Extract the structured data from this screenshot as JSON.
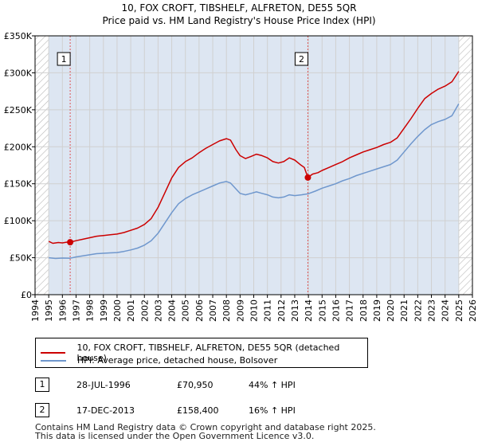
{
  "title": {
    "line1": "10, FOX CROFT, TIBSHELF, ALFRETON, DE55 5QR",
    "line2": "Price paid vs. HM Land Registry's House Price Index (HPI)"
  },
  "colors": {
    "property": "#cc0000",
    "hpi": "#6f97cd",
    "shade": "#dde6f2",
    "hatch": "#b8b8b8",
    "grid": "#d0d0d0",
    "marker_line": "#dd5555"
  },
  "chart_data": {
    "type": "line",
    "title": "Price paid vs. HM Land Registry's House Price Index (HPI)",
    "xlim": [
      1994,
      2026
    ],
    "ylim": [
      0,
      350000
    ],
    "x_ticks": [
      1994,
      1995,
      1996,
      1997,
      1998,
      1999,
      2000,
      2001,
      2002,
      2003,
      2004,
      2005,
      2006,
      2007,
      2008,
      2009,
      2010,
      2011,
      2012,
      2013,
      2014,
      2015,
      2016,
      2017,
      2018,
      2019,
      2020,
      2021,
      2022,
      2023,
      2024,
      2025,
      2026
    ],
    "x_tick_labels": [
      "1994",
      "1995",
      "1996",
      "1997",
      "1998",
      "1999",
      "2000",
      "2001",
      "2002",
      "2003",
      "2004",
      "2005",
      "2006",
      "2007",
      "2008",
      "2009",
      "2010",
      "2011",
      "2012",
      "2013",
      "2014",
      "2015",
      "2016",
      "2017",
      "2018",
      "2019",
      "2020",
      "2021",
      "2022",
      "2023",
      "2024",
      "2025",
      "2026"
    ],
    "y_ticks": [
      0,
      50000,
      100000,
      150000,
      200000,
      250000,
      300000,
      350000
    ],
    "y_tick_labels": [
      "£0",
      "£50K",
      "£100K",
      "£150K",
      "£200K",
      "£250K",
      "£300K",
      "£350K"
    ],
    "shaded_range": [
      1995,
      2025
    ],
    "hatched_ranges": [
      [
        1994,
        1995
      ],
      [
        2025,
        2026
      ]
    ],
    "grid": true,
    "series": [
      {
        "name": "10, FOX CROFT, TIBSHELF, ALFRETON, DE55 5QR (detached house)",
        "color": "#cc0000",
        "points": [
          [
            1995.0,
            72000
          ],
          [
            1995.3,
            69500
          ],
          [
            1995.7,
            70500
          ],
          [
            1996.0,
            70000
          ],
          [
            1996.3,
            71000
          ],
          [
            1996.57,
            70950
          ],
          [
            1997.0,
            73000
          ],
          [
            1997.5,
            75000
          ],
          [
            1998.0,
            77000
          ],
          [
            1998.5,
            79000
          ],
          [
            1999.0,
            80000
          ],
          [
            1999.5,
            81000
          ],
          [
            2000.0,
            82000
          ],
          [
            2000.5,
            84000
          ],
          [
            2001.0,
            87000
          ],
          [
            2001.5,
            90000
          ],
          [
            2002.0,
            95000
          ],
          [
            2002.5,
            103000
          ],
          [
            2003.0,
            118000
          ],
          [
            2003.5,
            138000
          ],
          [
            2004.0,
            158000
          ],
          [
            2004.5,
            172000
          ],
          [
            2005.0,
            180000
          ],
          [
            2005.5,
            185000
          ],
          [
            2006.0,
            192000
          ],
          [
            2006.5,
            198000
          ],
          [
            2007.0,
            203000
          ],
          [
            2007.5,
            208000
          ],
          [
            2008.0,
            211000
          ],
          [
            2008.3,
            209000
          ],
          [
            2008.7,
            196000
          ],
          [
            2009.0,
            188000
          ],
          [
            2009.4,
            184000
          ],
          [
            2009.8,
            187000
          ],
          [
            2010.2,
            190000
          ],
          [
            2010.6,
            188000
          ],
          [
            2011.0,
            185000
          ],
          [
            2011.4,
            180000
          ],
          [
            2011.8,
            178000
          ],
          [
            2012.2,
            180000
          ],
          [
            2012.6,
            185000
          ],
          [
            2013.0,
            182000
          ],
          [
            2013.4,
            176000
          ],
          [
            2013.7,
            172000
          ],
          [
            2013.96,
            158400
          ],
          [
            2014.3,
            163000
          ],
          [
            2014.7,
            165000
          ],
          [
            2015.0,
            168000
          ],
          [
            2015.5,
            172000
          ],
          [
            2016.0,
            176000
          ],
          [
            2016.5,
            180000
          ],
          [
            2017.0,
            185000
          ],
          [
            2017.5,
            189000
          ],
          [
            2018.0,
            193000
          ],
          [
            2018.5,
            196000
          ],
          [
            2019.0,
            199000
          ],
          [
            2019.5,
            203000
          ],
          [
            2020.0,
            206000
          ],
          [
            2020.5,
            212000
          ],
          [
            2021.0,
            225000
          ],
          [
            2021.5,
            238000
          ],
          [
            2022.0,
            252000
          ],
          [
            2022.5,
            265000
          ],
          [
            2023.0,
            272000
          ],
          [
            2023.5,
            278000
          ],
          [
            2024.0,
            282000
          ],
          [
            2024.5,
            288000
          ],
          [
            2025.0,
            302000
          ]
        ]
      },
      {
        "name": "HPI: Average price, detached house, Bolsover",
        "color": "#6f97cd",
        "points": [
          [
            1995.0,
            50000
          ],
          [
            1995.5,
            49000
          ],
          [
            1996.0,
            49500
          ],
          [
            1996.57,
            49300
          ],
          [
            1997.0,
            51000
          ],
          [
            1997.5,
            52500
          ],
          [
            1998.0,
            54000
          ],
          [
            1998.5,
            55500
          ],
          [
            1999.0,
            56000
          ],
          [
            1999.5,
            56500
          ],
          [
            2000.0,
            57000
          ],
          [
            2000.5,
            58500
          ],
          [
            2001.0,
            60500
          ],
          [
            2001.5,
            63000
          ],
          [
            2002.0,
            67000
          ],
          [
            2002.5,
            73000
          ],
          [
            2003.0,
            83000
          ],
          [
            2003.5,
            97000
          ],
          [
            2004.0,
            111000
          ],
          [
            2004.5,
            123000
          ],
          [
            2005.0,
            130000
          ],
          [
            2005.5,
            135000
          ],
          [
            2006.0,
            139000
          ],
          [
            2006.5,
            143000
          ],
          [
            2007.0,
            147000
          ],
          [
            2007.5,
            151000
          ],
          [
            2008.0,
            153000
          ],
          [
            2008.3,
            151000
          ],
          [
            2008.7,
            143000
          ],
          [
            2009.0,
            137000
          ],
          [
            2009.4,
            135000
          ],
          [
            2009.8,
            137000
          ],
          [
            2010.2,
            139000
          ],
          [
            2010.6,
            137000
          ],
          [
            2011.0,
            135000
          ],
          [
            2011.4,
            132000
          ],
          [
            2011.8,
            131000
          ],
          [
            2012.2,
            132000
          ],
          [
            2012.6,
            135000
          ],
          [
            2013.0,
            134000
          ],
          [
            2013.5,
            135000
          ],
          [
            2013.96,
            136300
          ],
          [
            2014.5,
            140000
          ],
          [
            2015.0,
            144000
          ],
          [
            2015.5,
            147000
          ],
          [
            2016.0,
            150000
          ],
          [
            2016.5,
            154000
          ],
          [
            2017.0,
            157000
          ],
          [
            2017.5,
            161000
          ],
          [
            2018.0,
            164000
          ],
          [
            2018.5,
            167000
          ],
          [
            2019.0,
            170000
          ],
          [
            2019.5,
            173000
          ],
          [
            2020.0,
            176000
          ],
          [
            2020.5,
            182000
          ],
          [
            2021.0,
            193000
          ],
          [
            2021.5,
            204000
          ],
          [
            2022.0,
            214000
          ],
          [
            2022.5,
            223000
          ],
          [
            2023.0,
            230000
          ],
          [
            2023.5,
            234000
          ],
          [
            2024.0,
            237000
          ],
          [
            2024.5,
            242000
          ],
          [
            2025.0,
            258000
          ]
        ]
      }
    ],
    "markers": [
      {
        "label": "1",
        "x": 1996.57,
        "y": 70950
      },
      {
        "label": "2",
        "x": 2013.96,
        "y": 158400
      }
    ]
  },
  "legend": {
    "property_label": "10, FOX CROFT, TIBSHELF, ALFRETON, DE55 5QR (detached house)",
    "hpi_label": "HPI: Average price, detached house, Bolsover"
  },
  "transactions": [
    {
      "num": "1",
      "date": "28-JUL-1996",
      "price": "£70,950",
      "hpi": "44% ↑ HPI"
    },
    {
      "num": "2",
      "date": "17-DEC-2013",
      "price": "£158,400",
      "hpi": "16% ↑ HPI"
    }
  ],
  "footer": {
    "line1": "Contains HM Land Registry data © Crown copyright and database right 2025.",
    "line2": "This data is licensed under the Open Government Licence v3.0."
  }
}
